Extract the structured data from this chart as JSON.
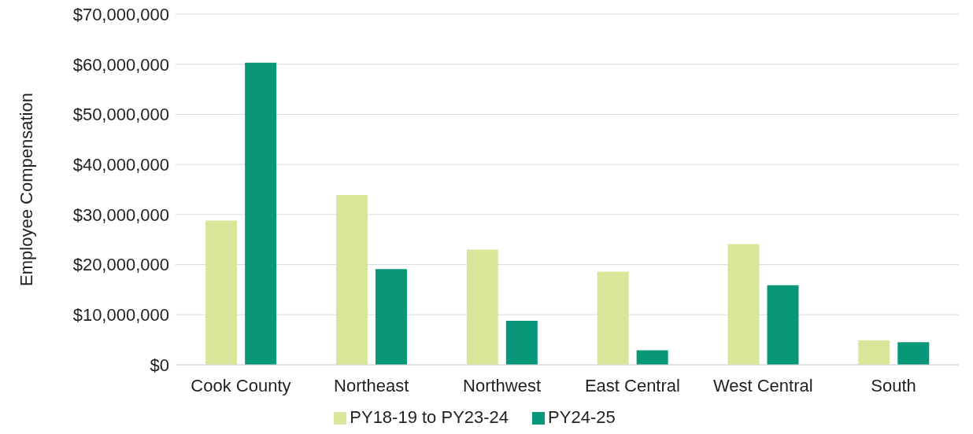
{
  "chart_data": {
    "type": "bar",
    "ylabel": "Employee Compensation",
    "categories": [
      "Cook County",
      "Northeast",
      "Northwest",
      "East Central",
      "West Central",
      "South"
    ],
    "series": [
      {
        "name": "PY18-19 to PY23-24",
        "color": "#d9e69a",
        "values": [
          28800000,
          33900000,
          23000000,
          18600000,
          24100000,
          4900000
        ]
      },
      {
        "name": "PY24-25",
        "color": "#09977a",
        "values": [
          60300000,
          19100000,
          8800000,
          2900000,
          15900000,
          4500000
        ]
      }
    ],
    "ylim": [
      0,
      70000000
    ],
    "yticks": [
      {
        "value": 0,
        "label": "$0"
      },
      {
        "value": 10000000,
        "label": "$10,000,000"
      },
      {
        "value": 20000000,
        "label": "$20,000,000"
      },
      {
        "value": 30000000,
        "label": "$30,000,000"
      },
      {
        "value": 40000000,
        "label": "$40,000,000"
      },
      {
        "value": 50000000,
        "label": "$50,000,000"
      },
      {
        "value": 60000000,
        "label": "$60,000,000"
      },
      {
        "value": 70000000,
        "label": "$70,000,000"
      }
    ],
    "grid": "y",
    "legend": "bottom"
  }
}
